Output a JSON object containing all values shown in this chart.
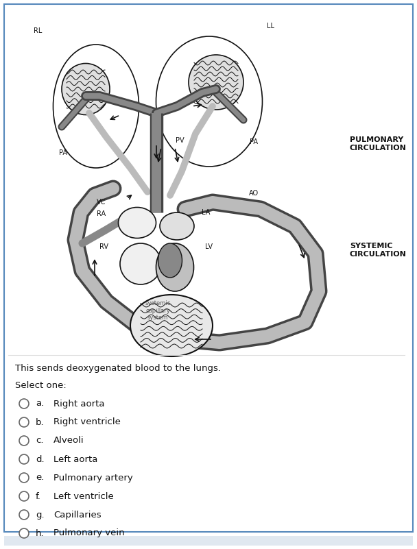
{
  "question_text": "This sends deoxygenated blood to the lungs.",
  "select_text": "Select one:",
  "options": [
    {
      "letter": "a.",
      "text": "Right aorta"
    },
    {
      "letter": "b.",
      "text": "Right ventricle"
    },
    {
      "letter": "c.",
      "text": "Alveoli"
    },
    {
      "letter": "d.",
      "text": "Left aorta"
    },
    {
      "letter": "e.",
      "text": "Pulmonary artery"
    },
    {
      "letter": "f.",
      "text": "Left ventricle"
    },
    {
      "letter": "g.",
      "text": "Capillaries"
    },
    {
      "letter": "h.",
      "text": "Pulmonary vein"
    }
  ],
  "bg_color": "#ffffff",
  "border_color": "#5588bb",
  "text_color": "#000000",
  "fig_width": 6.08,
  "fig_height": 8.01,
  "dpi": 100,
  "pulmonary_label": "PULMONARY\nCIRCULATION",
  "systemic_label": "SYSTEMIC\nCIRCULATION"
}
